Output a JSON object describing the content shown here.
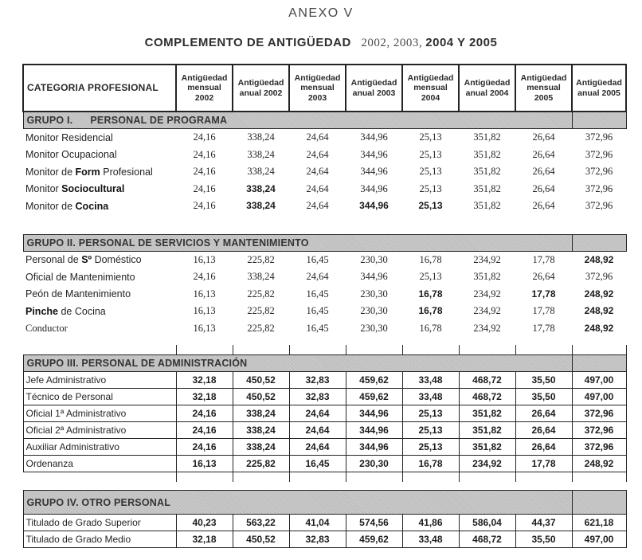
{
  "page": {
    "title": "ANEXO V",
    "subtitle_main": "COMPLEMENTO DE ANTIGÜEDAD",
    "subtitle_years_regular": "2002, 2003,",
    "subtitle_years_bold": "2004 Y 2005"
  },
  "colors": {
    "band_gray": "#bfbfbf",
    "border": "#242424",
    "text": "#1f1f1f"
  },
  "table": {
    "columns": [
      "CATEGORIA PROFESIONAL",
      "Antigüedad mensual 2002",
      "Antigüedad anual 2002",
      "Antigüedad mensual 2003",
      "Antigüedad anual 2003",
      "Antigüedad mensual 2004",
      "Antigüedad anual 2004",
      "Antigüedad mensual 2005",
      "Antigüedad anual 2005"
    ],
    "groups": [
      {
        "name": "GRUPO I.      PERSONAL DE PROGRAMA",
        "grid": false,
        "rows": [
          {
            "label": "Monitor Residencial",
            "values": [
              "24,16",
              "338,24",
              "24,64",
              "344,96",
              "25,13",
              "351,82",
              "26,64",
              "372,96"
            ]
          },
          {
            "label": "Monitor Ocupacional",
            "values": [
              "24,16",
              "338,24",
              "24,64",
              "344,96",
              "25,13",
              "351,82",
              "26,64",
              "372,96"
            ]
          },
          {
            "label": "Monitor de **Form** Profesional",
            "values": [
              "24,16",
              "338,24",
              "24,64",
              "344,96",
              "25,13",
              "351,82",
              "26,64",
              "372,96"
            ]
          },
          {
            "label": "Monitor **Sociocultural**",
            "values": [
              "24,16",
              "**338,24**",
              "24,64",
              "344,96",
              "25,13",
              "351,82",
              "26,64",
              "372,96"
            ]
          },
          {
            "label": "Monitor de **Cocina**",
            "values": [
              "24,16",
              "**338,24**",
              "24,64",
              "**344,96**",
              "**25,13**",
              "351,82",
              "26,64",
              "372,96"
            ]
          }
        ]
      },
      {
        "name": "GRUPO II. PERSONAL DE SERVICIOS Y MANTENIMIENTO",
        "grid": false,
        "rows": [
          {
            "label": "Personal de **Sº** Doméstico",
            "values": [
              "16,13",
              "225,82",
              "16,45",
              "230,30",
              "16,78",
              "234,92",
              "17,78",
              "**248,92**"
            ]
          },
          {
            "label": "Oficial de Mantenimiento",
            "values": [
              "24,16",
              "338,24",
              "24,64",
              "344,96",
              "25,13",
              "351,82",
              "26,64",
              "372,96"
            ]
          },
          {
            "label": "Peón de Mantenimiento",
            "values": [
              "16,13",
              "225,82",
              "16,45",
              "230,30",
              "**16,78**",
              "234,92",
              "**17,78**",
              "**248,92**"
            ]
          },
          {
            "label": "**Pinche** de Cocina",
            "values": [
              "16,13",
              "225,82",
              "16,45",
              "230,30",
              "**16,78**",
              "234,92",
              "17,78",
              "**248,92**"
            ]
          },
          {
            "label": "Conductor",
            "serif": true,
            "values": [
              "16,13",
              "225,82",
              "16,45",
              "230,30",
              "16,78",
              "234,92",
              "17,78",
              "**248,92**"
            ]
          }
        ]
      },
      {
        "name": "GRUPO III. PERSONAL DE ADMINISTRACIÓN",
        "grid": true,
        "rows": [
          {
            "label": "Jefe Administrativo",
            "values": [
              "32,18",
              "450,52",
              "32,83",
              "459,62",
              "33,48",
              "468,72",
              "35,50",
              "497,00"
            ]
          },
          {
            "label": "Técnico de Personal",
            "values": [
              "32,18",
              "450,52",
              "32,83",
              "459,62",
              "33,48",
              "468,72",
              "35,50",
              "497,00"
            ]
          },
          {
            "label": "Oficial 1ª Administrativo",
            "values": [
              "24,16",
              "338,24",
              "24,64",
              "344,96",
              "25,13",
              "351,82",
              "26,64",
              "372,96"
            ]
          },
          {
            "label": "Oficial 2ª Administrativo",
            "values": [
              "24,16",
              "338,24",
              "24,64",
              "344,96",
              "25,13",
              "351,82",
              "26,64",
              "372,96"
            ]
          },
          {
            "label": "Auxiliar Administrativo",
            "values": [
              "24,16",
              "338,24",
              "24,64",
              "344,96",
              "25,13",
              "351,82",
              "26,64",
              "372,96"
            ]
          },
          {
            "label": "Ordenanza",
            "values": [
              "16,13",
              "225,82",
              "16,45",
              "230,30",
              "16,78",
              "234,92",
              "17,78",
              "248,92"
            ]
          }
        ]
      },
      {
        "name": "GRUPO IV. OTRO PERSONAL",
        "grid": true,
        "rows": [
          {
            "label": "Titulado de Grado Superior",
            "values": [
              "40,23",
              "563,22",
              "41,04",
              "574,56",
              "41,86",
              "586,04",
              "44,37",
              "621,18"
            ]
          },
          {
            "label": "Titulado de Grado Medio",
            "values": [
              "32,18",
              "450,52",
              "32,83",
              "459,62",
              "33,48",
              "468,72",
              "35,50",
              "497,00"
            ]
          }
        ]
      }
    ]
  }
}
